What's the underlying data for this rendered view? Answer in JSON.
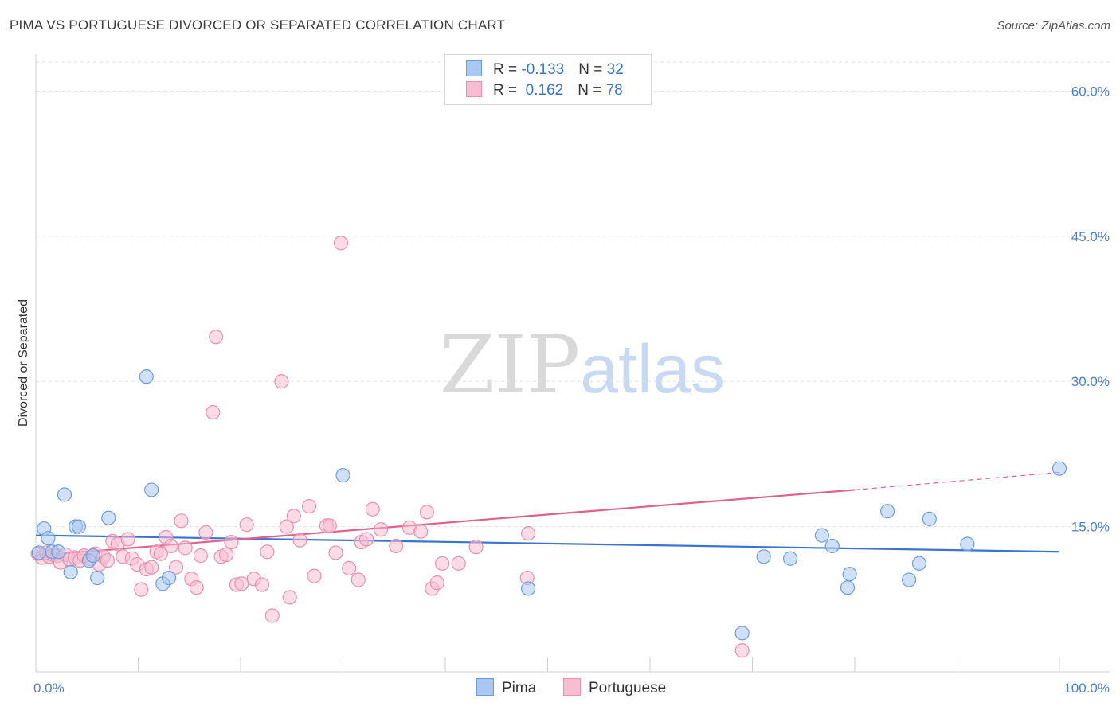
{
  "header": {
    "title": "PIMA VS PORTUGUESE DIVORCED OR SEPARATED CORRELATION CHART",
    "source": "Source: ZipAtlas.com"
  },
  "watermark": {
    "zip": "ZIP",
    "atlas": "atlas"
  },
  "legend": {
    "rows": [
      {
        "r_label": "R = ",
        "r_value": "-0.133",
        "n_label": "N = ",
        "n_value": "32"
      },
      {
        "r_label": "R = ",
        "r_value": " 0.162",
        "n_label": "N = ",
        "n_value": "78"
      }
    ]
  },
  "bottom_legend": {
    "pima": "Pima",
    "portuguese": "Portuguese"
  },
  "colors": {
    "pima_fill": "#a9c7f0",
    "pima_stroke": "#6a9de0",
    "pima_line": "#3a74d0",
    "portuguese_fill": "#f7bdd0",
    "portuguese_stroke": "#ea8fb0",
    "portuguese_line": "#e0608e",
    "axis_label": "#4a7fcf"
  },
  "chart_data": {
    "type": "scatter",
    "title": "PIMA VS PORTUGUESE DIVORCED OR SEPARATED CORRELATION CHART",
    "xlabel": "",
    "ylabel": "Divorced or Separated",
    "xlim": [
      0,
      100
    ],
    "ylim": [
      0,
      63
    ],
    "x_tick_labels": [
      "0.0%",
      "100.0%"
    ],
    "y_ticks": [
      {
        "value": 15,
        "label": "15.0%"
      },
      {
        "value": 30,
        "label": "30.0%"
      },
      {
        "value": 45,
        "label": "45.0%"
      },
      {
        "value": 60,
        "label": "60.0%"
      }
    ],
    "grid": "horizontal dashed",
    "series": [
      {
        "name": "Pima",
        "r": -0.133,
        "n": 32,
        "trend": {
          "x": [
            0,
            100
          ],
          "y": [
            14.1,
            12.4
          ]
        },
        "points": [
          [
            0.3,
            12.3
          ],
          [
            0.8,
            14.8
          ],
          [
            1.2,
            13.8
          ],
          [
            1.6,
            12.4
          ],
          [
            2.2,
            12.4
          ],
          [
            2.8,
            18.3
          ],
          [
            3.4,
            10.3
          ],
          [
            3.9,
            15.0
          ],
          [
            4.2,
            15.0
          ],
          [
            5.2,
            11.5
          ],
          [
            5.6,
            12.0
          ],
          [
            6.0,
            9.7
          ],
          [
            7.1,
            15.9
          ],
          [
            10.8,
            30.5
          ],
          [
            11.3,
            18.8
          ],
          [
            12.4,
            9.1
          ],
          [
            13.0,
            9.7
          ],
          [
            30.0,
            20.3
          ],
          [
            48.1,
            8.6
          ],
          [
            69.0,
            4.0
          ],
          [
            71.1,
            11.9
          ],
          [
            73.7,
            11.7
          ],
          [
            76.8,
            14.1
          ],
          [
            77.8,
            13.0
          ],
          [
            79.3,
            8.7
          ],
          [
            79.5,
            10.1
          ],
          [
            83.2,
            16.6
          ],
          [
            85.3,
            9.5
          ],
          [
            86.3,
            11.2
          ],
          [
            87.3,
            15.8
          ],
          [
            91.0,
            13.2
          ],
          [
            100.0,
            21.0
          ]
        ]
      },
      {
        "name": "Portuguese",
        "r": 0.162,
        "n": 78,
        "trend": {
          "x": [
            0,
            80
          ],
          "y": [
            12.0,
            18.8
          ]
        },
        "trend_dashed": {
          "x": [
            80,
            100
          ],
          "y": [
            18.8,
            20.6
          ]
        },
        "points": [
          [
            0.2,
            12.2
          ],
          [
            0.6,
            11.8
          ],
          [
            1.0,
            12.3
          ],
          [
            1.3,
            11.9
          ],
          [
            1.7,
            12.1
          ],
          [
            2.1,
            12.0
          ],
          [
            2.4,
            11.3
          ],
          [
            2.9,
            12.1
          ],
          [
            3.3,
            11.6
          ],
          [
            3.8,
            11.8
          ],
          [
            4.3,
            11.5
          ],
          [
            4.7,
            12.0
          ],
          [
            5.3,
            11.7
          ],
          [
            5.8,
            12.2
          ],
          [
            6.2,
            11.1
          ],
          [
            6.6,
            11.9
          ],
          [
            7.0,
            11.5
          ],
          [
            7.5,
            13.5
          ],
          [
            8.0,
            13.2
          ],
          [
            8.5,
            11.9
          ],
          [
            9.0,
            13.7
          ],
          [
            9.4,
            11.7
          ],
          [
            9.9,
            11.1
          ],
          [
            10.3,
            8.5
          ],
          [
            10.8,
            10.6
          ],
          [
            11.3,
            10.8
          ],
          [
            11.8,
            12.4
          ],
          [
            12.2,
            12.2
          ],
          [
            12.7,
            13.9
          ],
          [
            13.2,
            13.0
          ],
          [
            13.7,
            10.8
          ],
          [
            14.2,
            15.6
          ],
          [
            14.6,
            12.8
          ],
          [
            15.2,
            9.6
          ],
          [
            15.7,
            8.7
          ],
          [
            16.1,
            12.0
          ],
          [
            16.6,
            14.4
          ],
          [
            17.3,
            26.8
          ],
          [
            17.6,
            34.6
          ],
          [
            18.1,
            11.9
          ],
          [
            18.6,
            12.1
          ],
          [
            19.1,
            13.4
          ],
          [
            19.6,
            9.0
          ],
          [
            20.1,
            9.1
          ],
          [
            20.6,
            15.2
          ],
          [
            21.3,
            9.6
          ],
          [
            22.1,
            9.0
          ],
          [
            22.6,
            12.4
          ],
          [
            23.1,
            5.8
          ],
          [
            24.0,
            30.0
          ],
          [
            24.5,
            15.0
          ],
          [
            24.8,
            7.7
          ],
          [
            25.2,
            16.1
          ],
          [
            25.8,
            13.6
          ],
          [
            26.7,
            17.1
          ],
          [
            27.2,
            9.9
          ],
          [
            28.4,
            15.1
          ],
          [
            28.7,
            15.1
          ],
          [
            29.3,
            12.3
          ],
          [
            29.8,
            44.3
          ],
          [
            30.6,
            10.7
          ],
          [
            31.5,
            9.5
          ],
          [
            31.8,
            13.4
          ],
          [
            32.3,
            13.7
          ],
          [
            32.9,
            16.8
          ],
          [
            33.7,
            14.7
          ],
          [
            35.2,
            13.0
          ],
          [
            36.5,
            14.9
          ],
          [
            37.6,
            14.5
          ],
          [
            38.2,
            16.5
          ],
          [
            38.7,
            8.6
          ],
          [
            39.2,
            9.2
          ],
          [
            39.7,
            11.2
          ],
          [
            41.3,
            11.2
          ],
          [
            43.0,
            12.9
          ],
          [
            48.1,
            14.3
          ],
          [
            48.0,
            9.7
          ],
          [
            69.0,
            2.2
          ]
        ]
      }
    ]
  }
}
